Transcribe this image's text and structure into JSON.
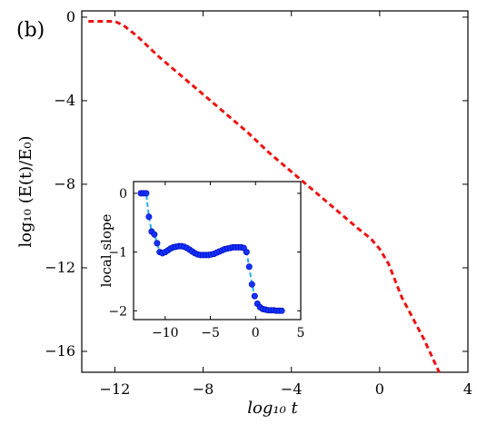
{
  "panel_label": "(b)",
  "colors": {
    "main_line": "#ee1111",
    "inset_line": "#22aaee",
    "inset_marker": "#1133ff",
    "inset_marker_edge": "#0000aa"
  },
  "chart_data": [
    {
      "type": "line",
      "xlabel": "log₁₀ t",
      "ylabel": "log₁₀ (E(t)/E₀)",
      "xlim": [
        -13.5,
        4
      ],
      "ylim": [
        -17,
        0.3
      ],
      "xticks": [
        -12,
        -8,
        -4,
        0,
        4
      ],
      "xtick_labels": [
        "−12",
        "−8",
        "−4",
        "0",
        "4"
      ],
      "yticks": [
        0,
        -4,
        -8,
        -12,
        -16
      ],
      "ytick_labels": [
        "0",
        "−4",
        "−8",
        "−12",
        "−16"
      ],
      "line_style": "dashed",
      "grid": false,
      "x": [
        -13.2,
        -12.0,
        -11.6,
        -11.0,
        -10.0,
        -9.0,
        -8.0,
        -7.0,
        -6.0,
        -5.0,
        -4.0,
        -3.0,
        -2.0,
        -1.0,
        -0.4,
        0.0,
        0.4,
        1.0,
        2.0,
        2.7
      ],
      "y": [
        -0.2,
        -0.2,
        -0.4,
        -0.9,
        -1.9,
        -2.8,
        -3.7,
        -4.6,
        -5.5,
        -6.5,
        -7.4,
        -8.3,
        -9.2,
        -10.1,
        -10.6,
        -11.1,
        -11.8,
        -13.4,
        -15.4,
        -17.0
      ]
    },
    {
      "type": "line",
      "inset": true,
      "xlabel": "",
      "ylabel": "local slope",
      "xlim": [
        -13.5,
        5
      ],
      "ylim": [
        -2.15,
        0.2
      ],
      "xticks": [
        -10,
        -5,
        0,
        5
      ],
      "xtick_labels": [
        "−10",
        "−5",
        "0",
        "5"
      ],
      "yticks": [
        0,
        -1,
        -2
      ],
      "ytick_labels": [
        "0",
        "−1",
        "−2"
      ],
      "line_style": "dashed",
      "markers": true,
      "grid": false,
      "x": [
        -12.7,
        -12.4,
        -12.1,
        -11.8,
        -11.5,
        -11.2,
        -10.9,
        -10.6,
        -10.3,
        -10.0,
        -9.7,
        -9.4,
        -9.1,
        -8.8,
        -8.5,
        -8.2,
        -7.9,
        -7.6,
        -7.3,
        -7.0,
        -6.7,
        -6.4,
        -6.1,
        -5.8,
        -5.5,
        -5.2,
        -4.9,
        -4.6,
        -4.3,
        -4.0,
        -3.7,
        -3.4,
        -3.1,
        -2.8,
        -2.5,
        -2.2,
        -1.9,
        -1.6,
        -1.3,
        -1.0,
        -0.7,
        -0.4,
        -0.1,
        0.2,
        0.5,
        0.8,
        1.1,
        1.4,
        1.7,
        2.0,
        2.3,
        2.6,
        2.9
      ],
      "y": [
        0.0,
        0.0,
        0.0,
        -0.4,
        -0.65,
        -0.7,
        -0.85,
        -1.0,
        -1.02,
        -1.0,
        -0.97,
        -0.94,
        -0.92,
        -0.91,
        -0.9,
        -0.9,
        -0.91,
        -0.93,
        -0.96,
        -0.99,
        -1.02,
        -1.04,
        -1.05,
        -1.05,
        -1.05,
        -1.05,
        -1.04,
        -1.03,
        -1.01,
        -0.99,
        -0.97,
        -0.95,
        -0.94,
        -0.93,
        -0.92,
        -0.92,
        -0.92,
        -0.92,
        -0.93,
        -1.0,
        -1.25,
        -1.55,
        -1.75,
        -1.88,
        -1.94,
        -1.97,
        -1.98,
        -1.99,
        -1.99,
        -1.99,
        -2.0,
        -2.0,
        -2.0
      ]
    }
  ]
}
